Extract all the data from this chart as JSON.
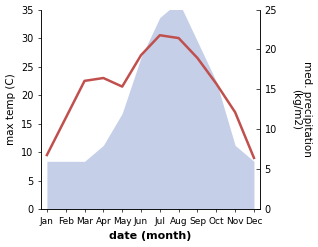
{
  "months": [
    "Jan",
    "Feb",
    "Mar",
    "Apr",
    "May",
    "Jun",
    "Jul",
    "Aug",
    "Sep",
    "Oct",
    "Nov",
    "Dec"
  ],
  "month_indices": [
    0,
    1,
    2,
    3,
    4,
    5,
    6,
    7,
    8,
    9,
    10,
    11
  ],
  "temperature": [
    9.5,
    16.0,
    22.5,
    23.0,
    21.5,
    27.0,
    30.5,
    30.0,
    26.5,
    22.0,
    17.0,
    9.0
  ],
  "precipitation": [
    6.0,
    6.0,
    6.0,
    8.0,
    12.0,
    19.0,
    24.0,
    26.0,
    21.0,
    16.0,
    8.0,
    6.0
  ],
  "temp_color": "#c0504d",
  "precip_fill_color": "#c5cfe8",
  "temp_ylim": [
    0,
    35
  ],
  "precip_ylim": [
    0,
    25
  ],
  "temp_yticks": [
    0,
    5,
    10,
    15,
    20,
    25,
    30,
    35
  ],
  "precip_yticks": [
    0,
    5,
    10,
    15,
    20,
    25
  ],
  "xlabel": "date (month)",
  "ylabel_left": "max temp (C)",
  "ylabel_right": "med. precipitation\n(kg/m2)",
  "background_color": "#ffffff",
  "line_width": 1.8
}
